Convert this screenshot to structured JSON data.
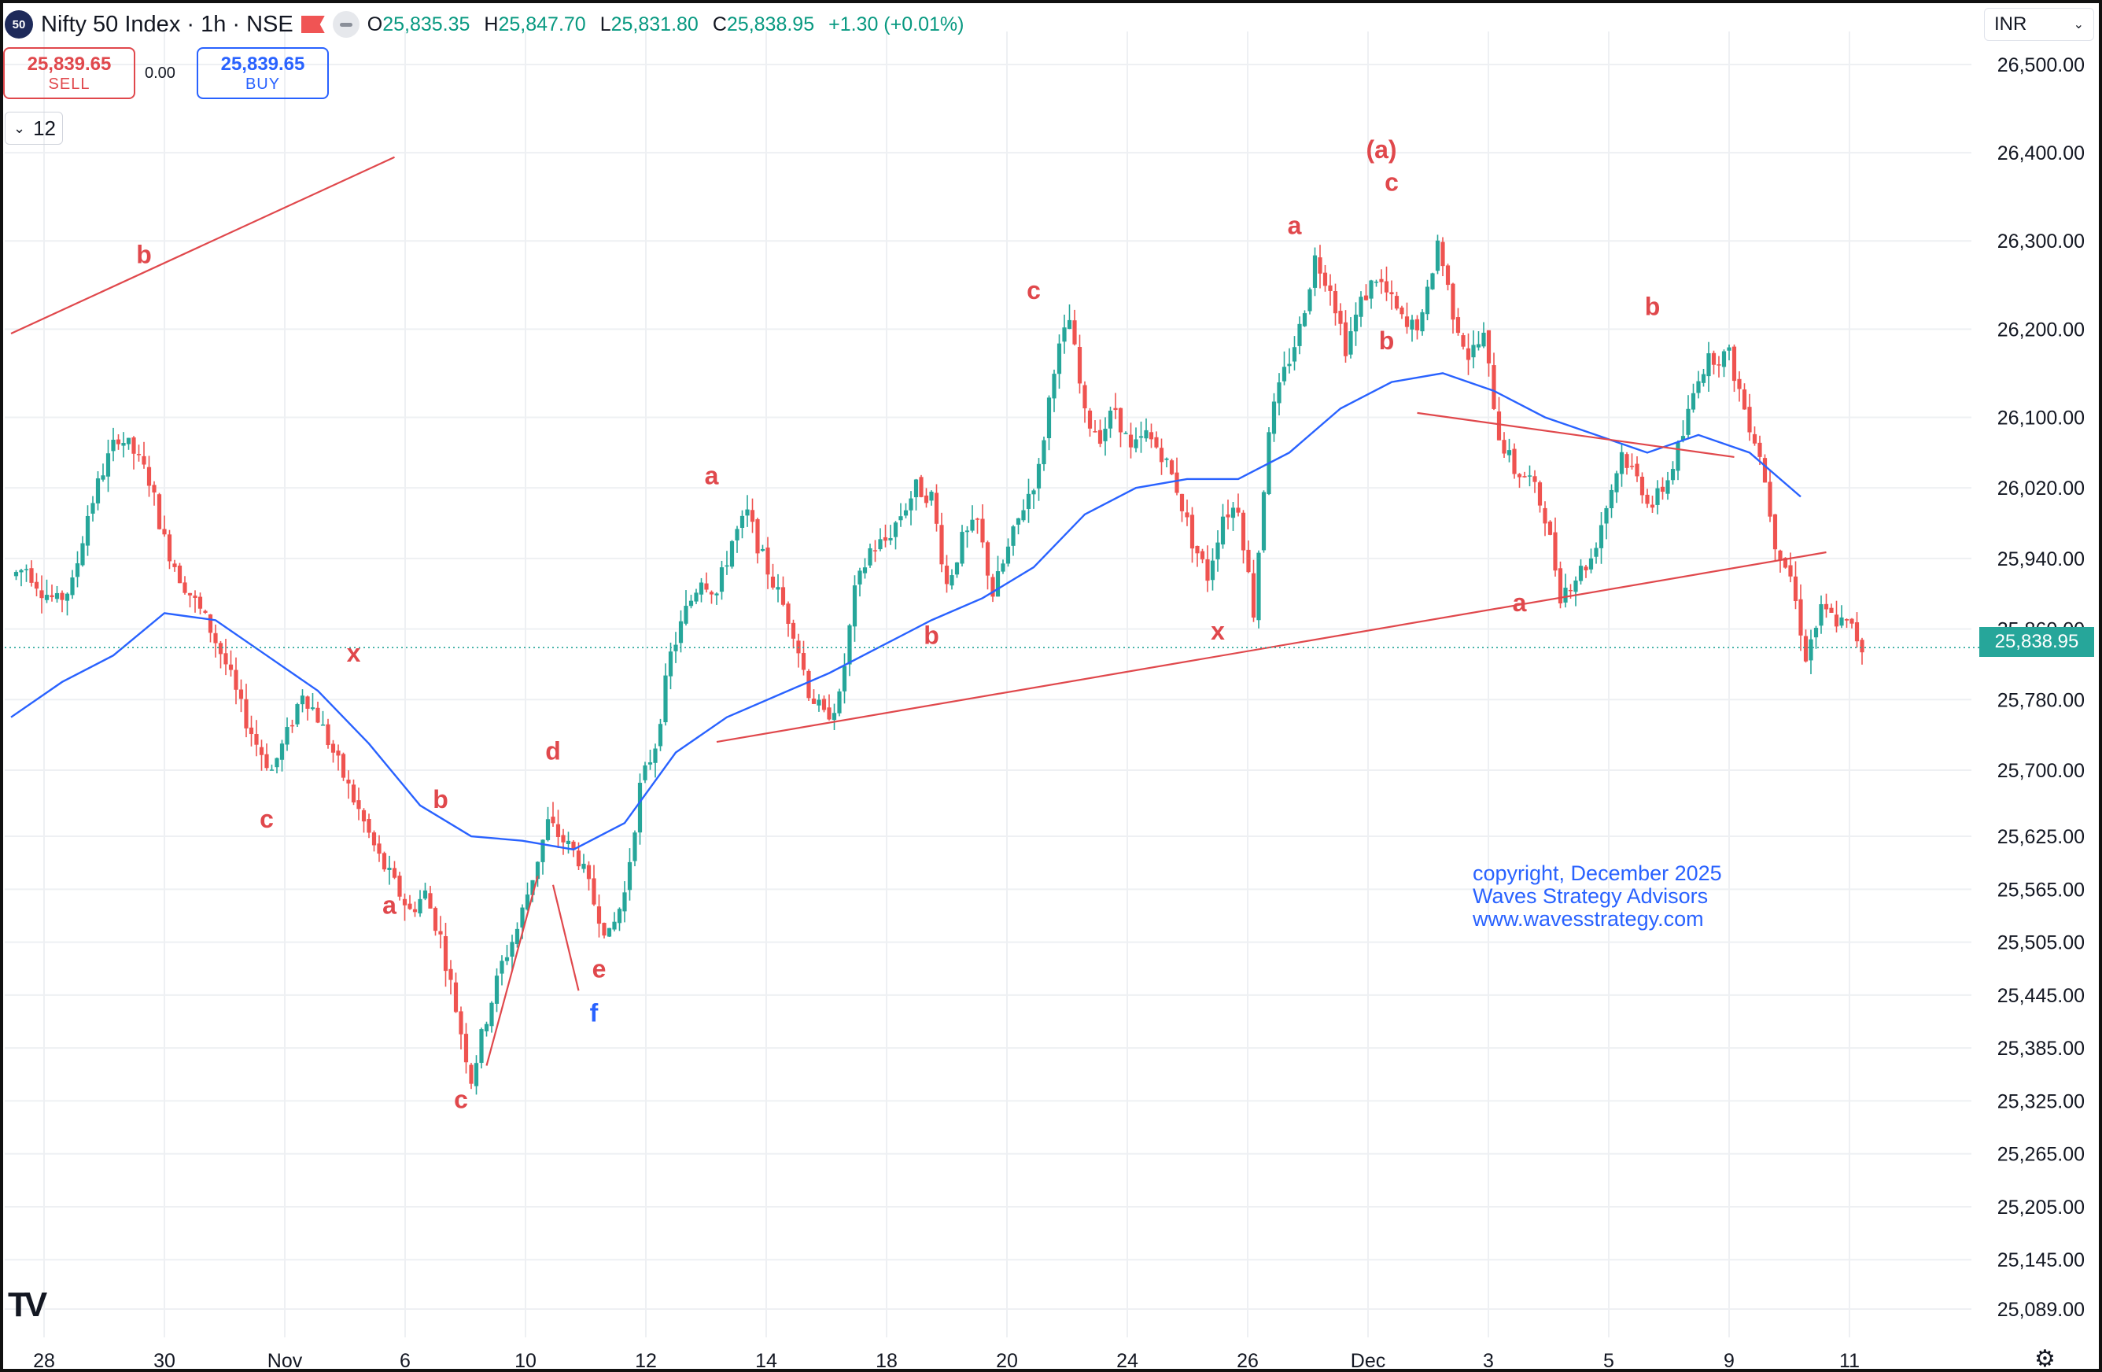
{
  "header": {
    "logo_text": "50",
    "title": "Nifty 50 Index · 1h · NSE",
    "ohlc": [
      {
        "key": "O",
        "value": "25,835.35"
      },
      {
        "key": "H",
        "value": "25,847.70"
      },
      {
        "key": "L",
        "value": "25,831.80"
      },
      {
        "key": "C",
        "value": "25,838.95"
      }
    ],
    "change": "+1.30 (+0.01%)"
  },
  "trade": {
    "sell_price": "25,839.65",
    "sell_label": "SELL",
    "spread": "0.00",
    "buy_price": "25,839.65",
    "buy_label": "BUY",
    "quantity": "12"
  },
  "currency": "INR",
  "last_price_tag": "25,838.95",
  "copyright": [
    "copyright, December 2025",
    "Waves Strategy Advisors",
    "www.wavesstrategy.com"
  ],
  "colors": {
    "up": "#26a69a",
    "down": "#ef5350",
    "ma": "#2962ff",
    "annotation": "#e0484c",
    "grid": "#eef0f3"
  },
  "chart_data": {
    "type": "candlestick",
    "title": "Nifty 50 Index · 1h · NSE",
    "y_ticks": [
      26500,
      26400,
      26300,
      26200,
      26100,
      26020,
      25940,
      25860,
      25780,
      25700,
      25625,
      25565,
      25505,
      25445,
      25385,
      25325,
      25265,
      25205,
      25145,
      25089
    ],
    "x_ticks": [
      "28",
      "30",
      "Nov",
      "6",
      "10",
      "12",
      "14",
      "18",
      "20",
      "24",
      "26",
      "Dec",
      "3",
      "5",
      "9",
      "11"
    ],
    "ylim": [
      25080,
      26560
    ],
    "grid": true,
    "path_points": [
      [
        0,
        25920
      ],
      [
        3,
        25930
      ],
      [
        6,
        25905
      ],
      [
        9,
        25890
      ],
      [
        12,
        25910
      ],
      [
        15,
        25990
      ],
      [
        18,
        26040
      ],
      [
        21,
        26080
      ],
      [
        24,
        26060
      ],
      [
        27,
        26030
      ],
      [
        30,
        25960
      ],
      [
        33,
        25920
      ],
      [
        36,
        25890
      ],
      [
        39,
        25860
      ],
      [
        42,
        25820
      ],
      [
        45,
        25770
      ],
      [
        48,
        25730
      ],
      [
        51,
        25700
      ],
      [
        54,
        25740
      ],
      [
        57,
        25790
      ],
      [
        60,
        25760
      ],
      [
        63,
        25720
      ],
      [
        66,
        25680
      ],
      [
        69,
        25640
      ],
      [
        72,
        25600
      ],
      [
        75,
        25570
      ],
      [
        78,
        25540
      ],
      [
        81,
        25560
      ],
      [
        84,
        25510
      ],
      [
        87,
        25430
      ],
      [
        90,
        25350
      ],
      [
        93,
        25420
      ],
      [
        96,
        25480
      ],
      [
        99,
        25520
      ],
      [
        102,
        25580
      ],
      [
        105,
        25640
      ],
      [
        108,
        25620
      ],
      [
        111,
        25600
      ],
      [
        114,
        25550
      ],
      [
        117,
        25510
      ],
      [
        120,
        25560
      ],
      [
        123,
        25680
      ],
      [
        126,
        25730
      ],
      [
        129,
        25830
      ],
      [
        132,
        25880
      ],
      [
        135,
        25920
      ],
      [
        138,
        25900
      ],
      [
        141,
        25960
      ],
      [
        144,
        25990
      ],
      [
        147,
        25940
      ],
      [
        150,
        25900
      ],
      [
        153,
        25860
      ],
      [
        156,
        25790
      ],
      [
        159,
        25760
      ],
      [
        162,
        25780
      ],
      [
        165,
        25900
      ],
      [
        168,
        25950
      ],
      [
        171,
        25960
      ],
      [
        174,
        25990
      ],
      [
        177,
        26020
      ],
      [
        180,
        26010
      ],
      [
        183,
        25910
      ],
      [
        186,
        25960
      ],
      [
        189,
        25980
      ],
      [
        192,
        25900
      ],
      [
        195,
        25950
      ],
      [
        198,
        26000
      ],
      [
        201,
        26040
      ],
      [
        204,
        26160
      ],
      [
        207,
        26210
      ],
      [
        210,
        26100
      ],
      [
        213,
        26080
      ],
      [
        216,
        26110
      ],
      [
        219,
        26060
      ],
      [
        222,
        26080
      ],
      [
        225,
        26060
      ],
      [
        228,
        26020
      ],
      [
        231,
        25960
      ],
      [
        234,
        25920
      ],
      [
        237,
        25990
      ],
      [
        240,
        26000
      ],
      [
        243,
        25880
      ],
      [
        246,
        26090
      ],
      [
        249,
        26150
      ],
      [
        252,
        26200
      ],
      [
        255,
        26280
      ],
      [
        258,
        26250
      ],
      [
        261,
        26180
      ],
      [
        264,
        26230
      ],
      [
        267,
        26260
      ],
      [
        270,
        26230
      ],
      [
        273,
        26200
      ],
      [
        276,
        26210
      ],
      [
        279,
        26300
      ],
      [
        282,
        26220
      ],
      [
        285,
        26170
      ],
      [
        288,
        26190
      ],
      [
        291,
        26080
      ],
      [
        294,
        26040
      ],
      [
        297,
        26030
      ],
      [
        300,
        25990
      ],
      [
        303,
        25900
      ],
      [
        306,
        25920
      ],
      [
        309,
        25940
      ],
      [
        312,
        26000
      ],
      [
        315,
        26060
      ],
      [
        318,
        26030
      ],
      [
        321,
        26000
      ],
      [
        324,
        26030
      ],
      [
        327,
        26080
      ],
      [
        330,
        26150
      ],
      [
        333,
        26170
      ],
      [
        336,
        26170
      ],
      [
        339,
        26110
      ],
      [
        342,
        26060
      ],
      [
        345,
        25960
      ],
      [
        348,
        25920
      ],
      [
        351,
        25830
      ],
      [
        354,
        25880
      ],
      [
        357,
        25870
      ],
      [
        360,
        25860
      ],
      [
        362,
        25839
      ]
    ],
    "ma_points": [
      [
        0,
        25760
      ],
      [
        10,
        25800
      ],
      [
        20,
        25830
      ],
      [
        30,
        25878
      ],
      [
        40,
        25870
      ],
      [
        50,
        25830
      ],
      [
        60,
        25790
      ],
      [
        70,
        25730
      ],
      [
        80,
        25660
      ],
      [
        90,
        25625
      ],
      [
        100,
        25620
      ],
      [
        110,
        25610
      ],
      [
        120,
        25640
      ],
      [
        130,
        25720
      ],
      [
        140,
        25760
      ],
      [
        150,
        25785
      ],
      [
        160,
        25810
      ],
      [
        170,
        25840
      ],
      [
        180,
        25870
      ],
      [
        190,
        25895
      ],
      [
        200,
        25930
      ],
      [
        210,
        25990
      ],
      [
        220,
        26020
      ],
      [
        230,
        26030
      ],
      [
        240,
        26030
      ],
      [
        250,
        26060
      ],
      [
        260,
        26110
      ],
      [
        270,
        26140
      ],
      [
        280,
        26150
      ],
      [
        290,
        26130
      ],
      [
        300,
        26100
      ],
      [
        310,
        26080
      ],
      [
        320,
        26060
      ],
      [
        330,
        26080
      ],
      [
        340,
        26060
      ],
      [
        350,
        26010
      ]
    ],
    "trendlines": [
      [
        [
          0,
          26195
        ],
        [
          75,
          26395
        ]
      ],
      [
        [
          138,
          25732
        ],
        [
          355,
          25947
        ]
      ],
      [
        [
          275,
          26105
        ],
        [
          337,
          26055
        ]
      ],
      [
        [
          93,
          25365
        ],
        [
          103,
          25580
        ]
      ],
      [
        [
          106,
          25570
        ],
        [
          111,
          25450
        ]
      ]
    ],
    "wave_labels": [
      {
        "text": "b",
        "i": 26,
        "v": 26275,
        "color": "red"
      },
      {
        "text": "c",
        "i": 50,
        "v": 25635,
        "color": "red"
      },
      {
        "text": "x",
        "i": 67,
        "v": 25823,
        "color": "red"
      },
      {
        "text": "b",
        "i": 84,
        "v": 25657,
        "color": "red"
      },
      {
        "text": "a",
        "i": 74,
        "v": 25537,
        "color": "red"
      },
      {
        "text": "c",
        "i": 88,
        "v": 25317,
        "color": "red"
      },
      {
        "text": "d",
        "i": 106,
        "v": 25712,
        "color": "red"
      },
      {
        "text": "e",
        "i": 115,
        "v": 25465,
        "color": "red"
      },
      {
        "text": "f",
        "i": 114,
        "v": 25415,
        "color": "blue"
      },
      {
        "text": "a",
        "i": 137,
        "v": 26024,
        "color": "red"
      },
      {
        "text": "b",
        "i": 180,
        "v": 25843,
        "color": "red"
      },
      {
        "text": "c",
        "i": 200,
        "v": 26234,
        "color": "red"
      },
      {
        "text": "x",
        "i": 236,
        "v": 25848,
        "color": "red"
      },
      {
        "text": "a",
        "i": 251,
        "v": 26308,
        "color": "red"
      },
      {
        "text": "(a)",
        "i": 268,
        "v": 26394,
        "color": "red"
      },
      {
        "text": "c",
        "i": 270,
        "v": 26357,
        "color": "red"
      },
      {
        "text": "b",
        "i": 269,
        "v": 26177,
        "color": "red"
      },
      {
        "text": "a",
        "i": 295,
        "v": 25880,
        "color": "red"
      },
      {
        "text": "b",
        "i": 321,
        "v": 26216,
        "color": "red"
      }
    ]
  }
}
